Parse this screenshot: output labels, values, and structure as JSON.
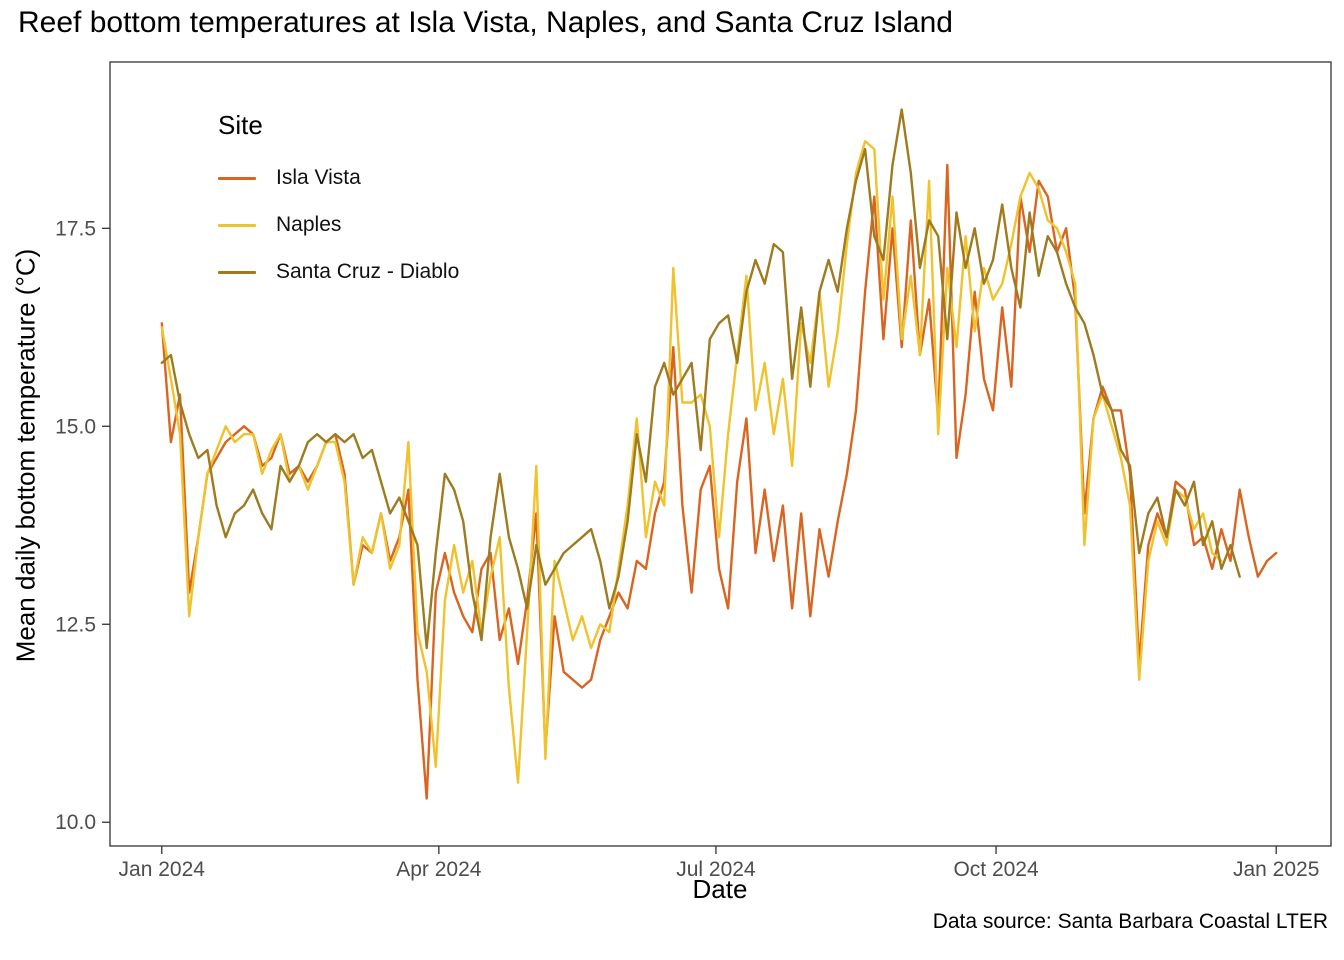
{
  "title": "Reef bottom temperatures at Isla Vista, Naples, and Santa Cruz Island",
  "caption": "Data source: Santa Barbara Coastal LTER",
  "axes": {
    "x_label": "Date",
    "y_label": "Mean daily bottom temperature (°C)"
  },
  "legend": {
    "title": "Site",
    "position": "inside-top-left"
  },
  "chart_data": {
    "type": "line",
    "title": "Reef bottom temperatures at Isla Vista, Naples, and Santa Cruz Island",
    "xlabel": "Date",
    "ylabel": "Mean daily bottom temperature (°C)",
    "grid": false,
    "panel_border": true,
    "tick_color": "#4D4D4D",
    "x_axis": {
      "unit": "days_since_2024-01-01",
      "range": [
        -17,
        384
      ],
      "ticks": [
        {
          "day": 0,
          "label": "Jan 2024"
        },
        {
          "day": 91,
          "label": "Apr 2024"
        },
        {
          "day": 182,
          "label": "Jul 2024"
        },
        {
          "day": 274,
          "label": "Oct 2024"
        },
        {
          "day": 366,
          "label": "Jan 2025"
        }
      ]
    },
    "y_axis": {
      "unit": "°C",
      "range": [
        9.7,
        19.6
      ],
      "ticks": [
        {
          "value": 10.0,
          "label": "10.0"
        },
        {
          "value": 12.5,
          "label": "12.5"
        },
        {
          "value": 15.0,
          "label": "15.0"
        },
        {
          "value": 17.5,
          "label": "17.5"
        }
      ]
    },
    "sampling_note": "values estimated from plot at 3-day intervals",
    "series": [
      {
        "label": "Isla Vista",
        "color": "#D96520",
        "start_day": 0,
        "step_days": 3,
        "values": [
          16.3,
          14.8,
          15.4,
          12.9,
          13.6,
          14.4,
          14.6,
          14.8,
          14.9,
          15.0,
          14.9,
          14.5,
          14.6,
          14.9,
          14.4,
          14.5,
          14.3,
          14.5,
          14.8,
          14.9,
          14.4,
          13.0,
          13.5,
          13.4,
          13.9,
          13.3,
          13.6,
          14.2,
          11.8,
          10.3,
          12.9,
          13.4,
          12.9,
          12.6,
          12.4,
          13.2,
          13.4,
          12.3,
          12.7,
          12.0,
          12.8,
          13.9,
          10.9,
          12.6,
          11.9,
          11.8,
          11.7,
          11.8,
          12.3,
          12.6,
          12.9,
          12.7,
          13.3,
          13.2,
          13.9,
          14.3,
          16.0,
          14.0,
          12.9,
          14.2,
          14.5,
          13.2,
          12.7,
          14.3,
          15.1,
          13.4,
          14.2,
          13.3,
          14.0,
          12.7,
          13.9,
          12.6,
          13.7,
          13.1,
          13.8,
          14.4,
          15.2,
          16.7,
          17.9,
          16.1,
          17.5,
          16.0,
          17.6,
          15.9,
          16.6,
          15.1,
          18.3,
          14.6,
          15.4,
          16.7,
          15.6,
          15.2,
          16.5,
          15.5,
          17.9,
          17.2,
          18.1,
          17.9,
          17.2,
          17.5,
          16.6,
          13.9,
          15.1,
          15.5,
          15.2,
          15.2,
          14.4,
          12.0,
          13.5,
          13.9,
          13.6,
          14.3,
          14.2,
          13.5,
          13.6,
          13.2,
          13.7,
          13.3,
          14.2,
          13.6,
          13.1,
          13.3,
          13.4
        ]
      },
      {
        "label": "Naples",
        "color": "#F0C22C",
        "start_day": 0,
        "step_days": 3,
        "values": [
          16.25,
          15.6,
          14.9,
          12.6,
          13.6,
          14.4,
          14.7,
          15.0,
          14.8,
          14.9,
          14.9,
          14.4,
          14.7,
          14.9,
          14.3,
          14.5,
          14.2,
          14.5,
          14.8,
          14.8,
          14.3,
          13.0,
          13.6,
          13.4,
          13.9,
          13.2,
          13.5,
          14.8,
          12.4,
          11.9,
          10.7,
          12.8,
          13.5,
          12.9,
          13.3,
          12.4,
          13.1,
          13.6,
          11.7,
          10.5,
          12.4,
          14.5,
          10.8,
          13.3,
          12.8,
          12.3,
          12.6,
          12.2,
          12.5,
          12.4,
          13.2,
          14.0,
          15.1,
          13.6,
          14.3,
          14.0,
          17.0,
          15.3,
          15.3,
          15.4,
          15.0,
          13.6,
          14.9,
          15.9,
          16.9,
          15.2,
          15.8,
          14.9,
          15.6,
          14.5,
          16.3,
          15.8,
          16.7,
          15.5,
          16.2,
          17.3,
          18.2,
          18.6,
          18.5,
          16.6,
          17.9,
          16.1,
          16.9,
          15.9,
          18.1,
          14.9,
          17.0,
          16.0,
          17.4,
          16.2,
          17.0,
          16.6,
          16.8,
          17.3,
          17.9,
          18.2,
          18.0,
          17.6,
          17.5,
          17.2,
          16.8,
          13.5,
          15.1,
          15.4,
          15.0,
          14.6,
          14.0,
          11.8,
          13.3,
          13.8,
          13.5,
          14.2,
          14.1,
          13.7,
          13.9,
          13.4,
          13.3
        ]
      },
      {
        "label": "Santa Cruz - Diablo",
        "color": "#9E7B1E",
        "start_day": 0,
        "step_days": 3,
        "values": [
          15.8,
          15.9,
          15.3,
          14.9,
          14.6,
          14.7,
          14.0,
          13.6,
          13.9,
          14.0,
          14.2,
          13.9,
          13.7,
          14.5,
          14.3,
          14.5,
          14.8,
          14.9,
          14.8,
          14.9,
          14.8,
          14.9,
          14.6,
          14.7,
          14.3,
          13.9,
          14.1,
          13.8,
          13.5,
          12.2,
          13.4,
          14.4,
          14.2,
          13.8,
          12.9,
          12.3,
          13.6,
          14.4,
          13.6,
          13.2,
          12.7,
          13.5,
          13.0,
          13.2,
          13.4,
          13.5,
          13.6,
          13.7,
          13.3,
          12.7,
          13.1,
          13.8,
          14.9,
          14.3,
          15.5,
          15.8,
          15.4,
          15.6,
          15.8,
          14.7,
          16.1,
          16.3,
          16.4,
          15.8,
          16.7,
          17.1,
          16.8,
          17.3,
          17.2,
          15.6,
          16.5,
          15.5,
          16.7,
          17.1,
          16.7,
          17.5,
          18.1,
          18.5,
          17.4,
          17.1,
          18.3,
          19.0,
          18.2,
          17.0,
          17.6,
          17.4,
          16.1,
          17.7,
          17.0,
          17.5,
          16.8,
          17.1,
          17.8,
          17.0,
          16.5,
          17.7,
          16.9,
          17.4,
          17.2,
          16.8,
          16.5,
          16.3,
          15.9,
          15.4,
          15.2,
          14.7,
          14.5,
          13.4,
          13.9,
          14.1,
          13.6,
          14.2,
          14.0,
          14.3,
          13.5,
          13.8,
          13.2,
          13.5,
          13.1
        ]
      }
    ]
  }
}
